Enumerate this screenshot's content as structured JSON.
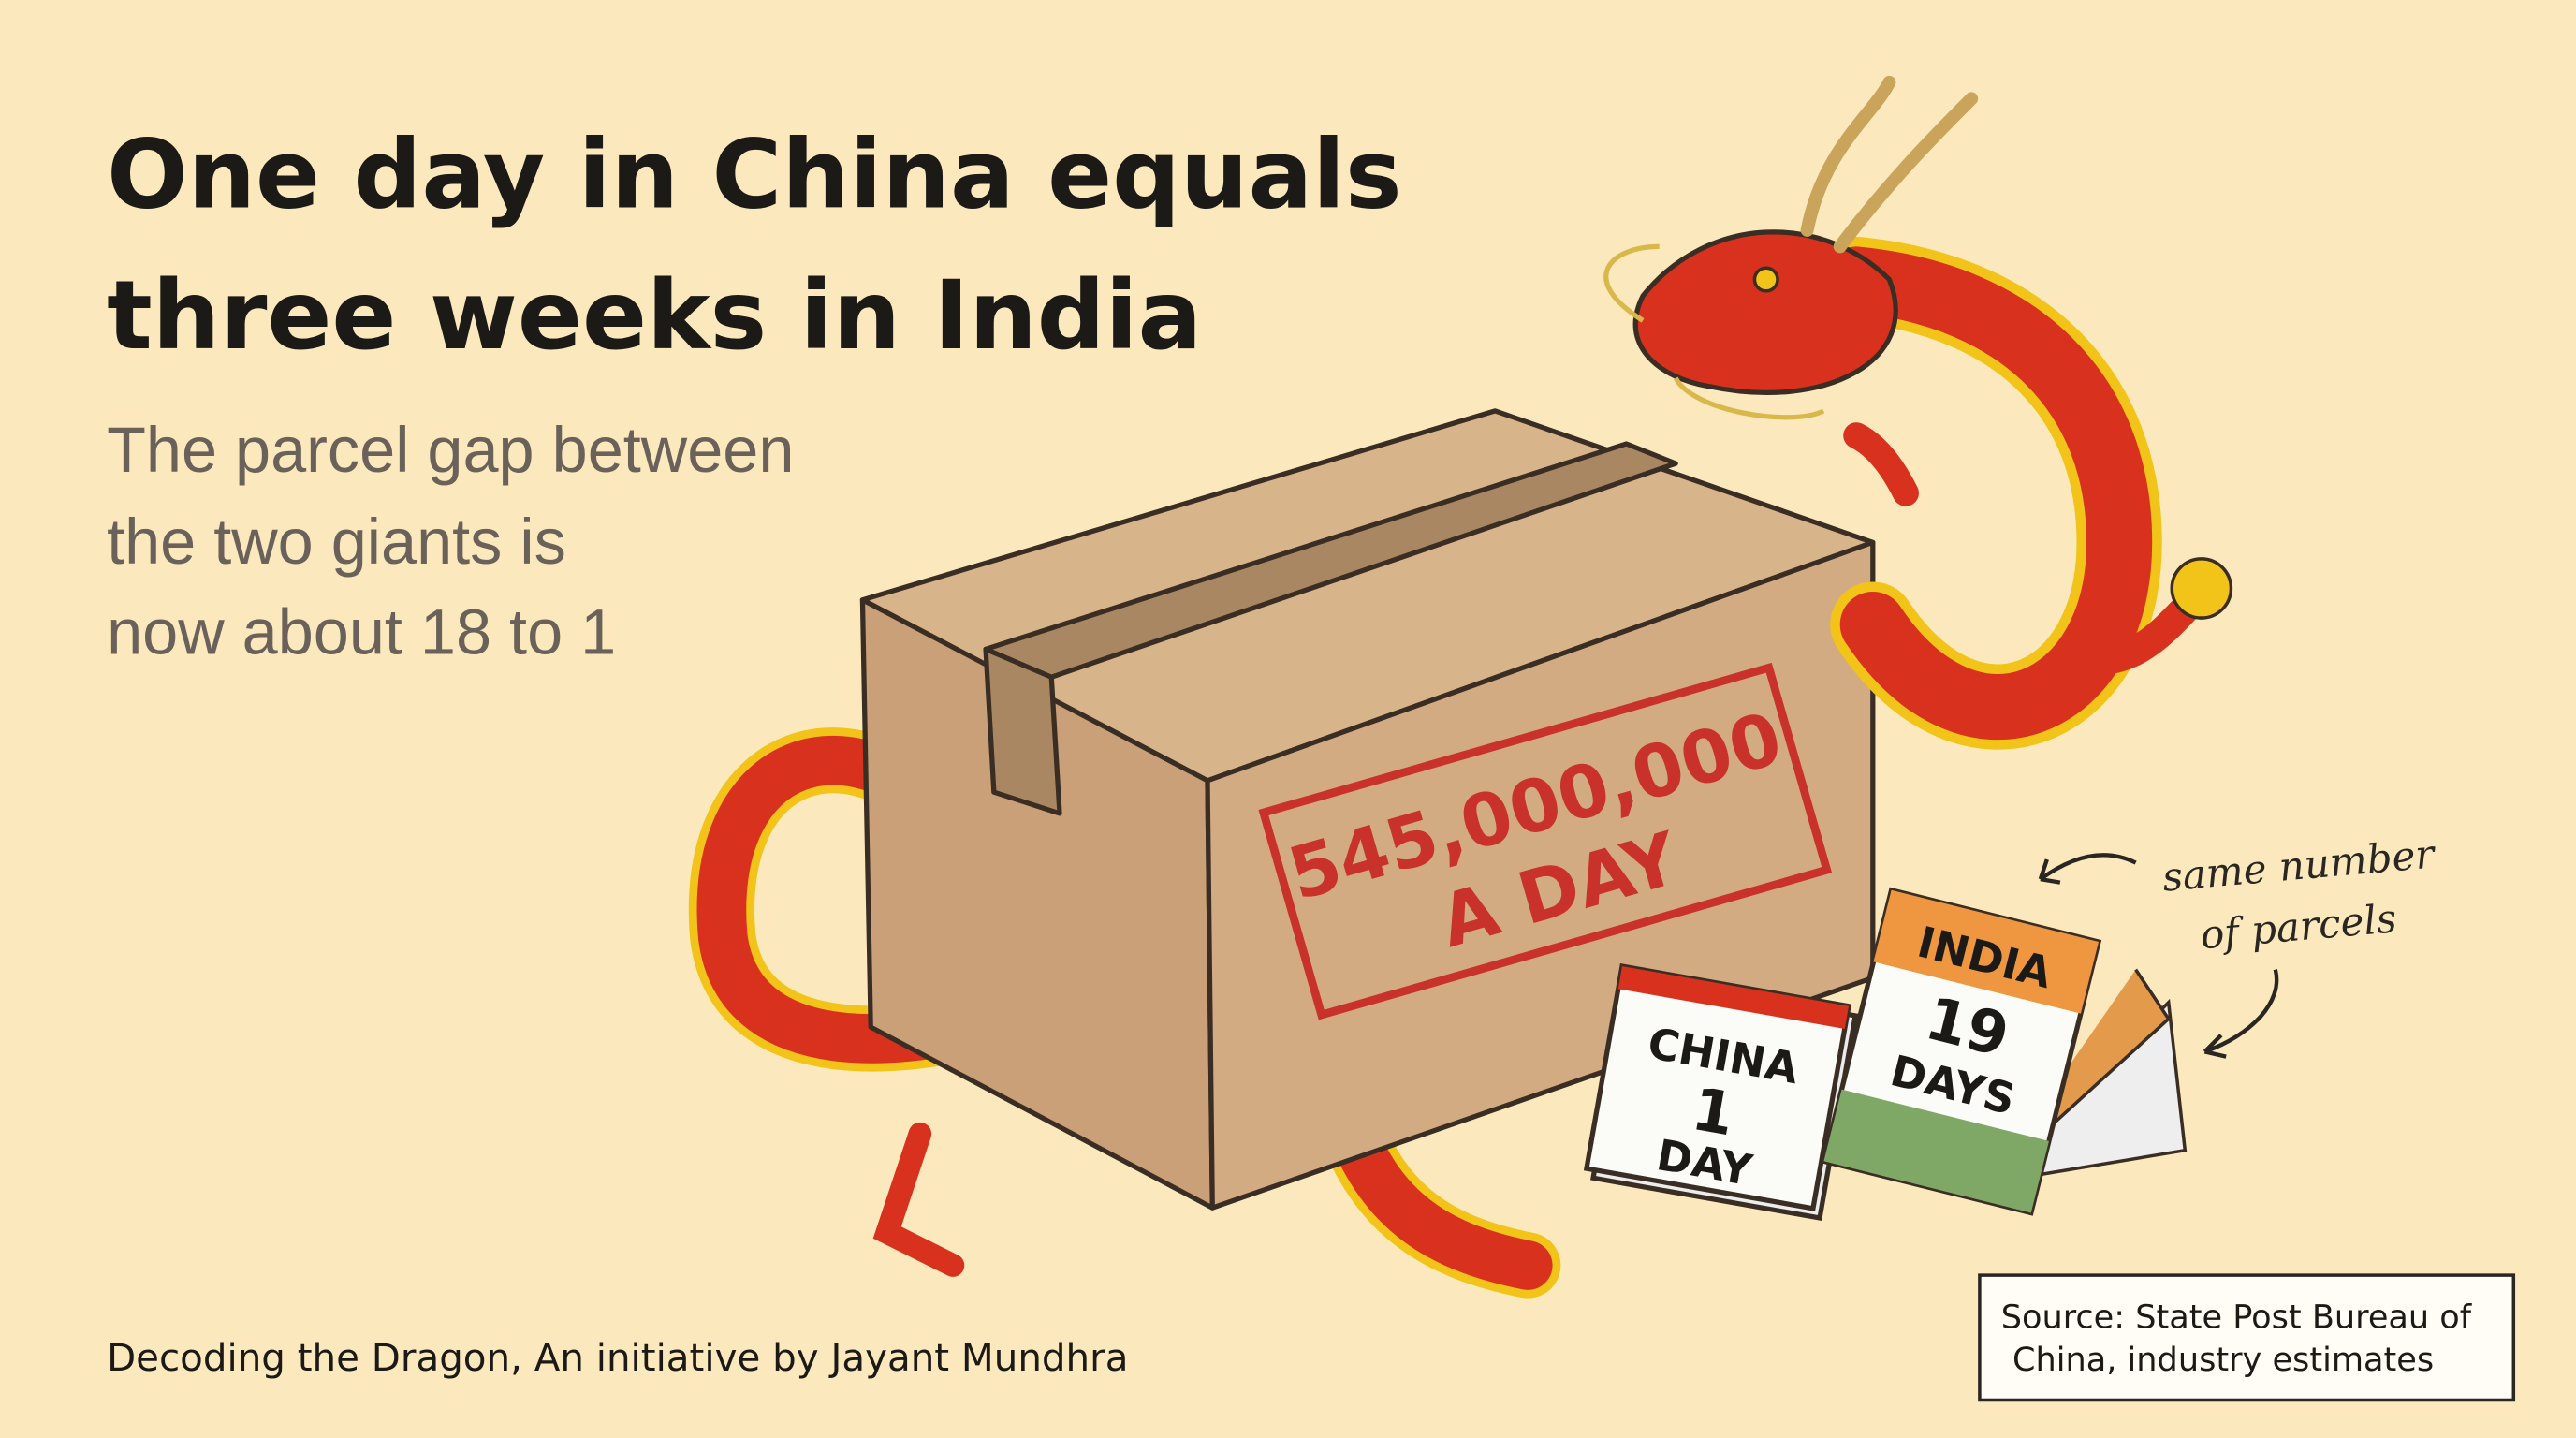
{
  "header": {
    "title": [
      "One day in China equals",
      "three weeks in India"
    ],
    "subtitle": [
      "The parcel gap between",
      "the two giants is",
      "now about 18 to 1"
    ]
  },
  "illustration": {
    "box_stamp": [
      "545,000,000",
      "A DAY"
    ],
    "china_calendar": [
      "CHINA",
      "1",
      "DAY"
    ],
    "india_calendar": [
      "INDIA",
      "19",
      "DAYS"
    ],
    "annotation": [
      "same number",
      "of parcels"
    ]
  },
  "footer": {
    "credit": "Decoding the Dragon, An initiative by Jayant Mundhra",
    "source": [
      "Source: State Post Bureau of",
      "China, industry estimates"
    ]
  }
}
